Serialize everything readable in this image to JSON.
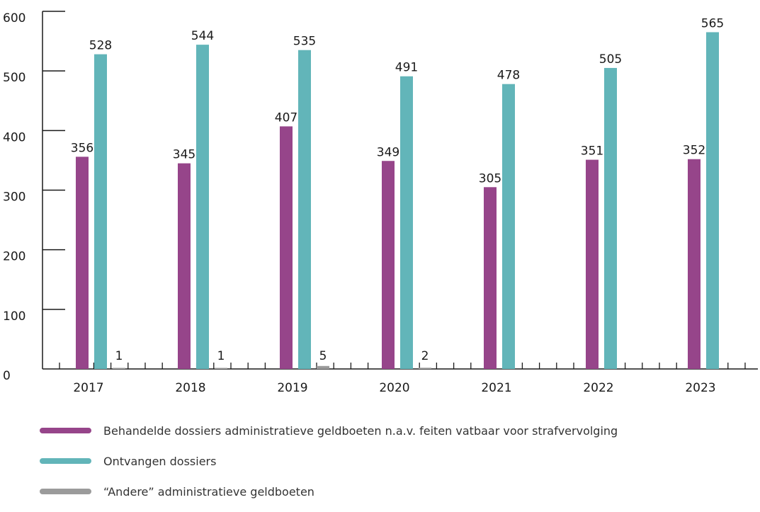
{
  "chart_data": {
    "type": "bar",
    "categories": [
      "2017",
      "2018",
      "2019",
      "2020",
      "2021",
      "2022",
      "2023"
    ],
    "series": [
      {
        "name": "Behandelde dossiers administratieve geldboeten n.a.v. feiten vatbaar voor strafvervolging",
        "color": "#96458a",
        "values": [
          356,
          345,
          407,
          349,
          305,
          351,
          352
        ],
        "labels": [
          "356",
          "345",
          "407",
          "349",
          "305",
          "351",
          "352"
        ]
      },
      {
        "name": "Ontvangen dossiers",
        "color": "#62b5b9",
        "values": [
          528,
          544,
          535,
          491,
          478,
          505,
          565
        ],
        "labels": [
          "528",
          "544",
          "535",
          "491",
          "478",
          "505",
          "565"
        ]
      },
      {
        "name": "“Andere” administratieve geldboeten",
        "color": "#9b9b9b",
        "values": [
          1,
          1,
          5,
          2,
          null,
          null,
          null
        ],
        "labels": [
          "1",
          "1",
          "5",
          "2",
          "",
          "",
          ""
        ]
      }
    ],
    "y_ticks": [
      "0",
      "100",
      "200",
      "300",
      "400",
      "500",
      "600"
    ],
    "ylim": [
      0,
      600
    ],
    "grid": false,
    "legend_position": "bottom-left"
  }
}
